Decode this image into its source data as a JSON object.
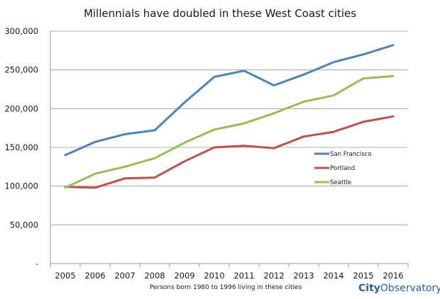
{
  "chart_data": {
    "type": "line",
    "title": "Millennials have doubled in these West Coast cities",
    "xlabel": "Persons born 1980 to 1996 living in these cities",
    "ylabel": "",
    "categories": [
      "2005",
      "2006",
      "2007",
      "2008",
      "2009",
      "2010",
      "2011",
      "2012",
      "2013",
      "2014",
      "2015",
      "2016"
    ],
    "ylim": [
      0,
      300000
    ],
    "yticks": [
      0,
      50000,
      100000,
      150000,
      200000,
      250000,
      300000
    ],
    "ytick_labels": [
      "-",
      "50,000",
      "100,000",
      "150,000",
      "200,000",
      "250,000",
      "300,000"
    ],
    "grid": true,
    "legend_position": "right",
    "series": [
      {
        "name": "San Francisco",
        "color": "#4f81bd",
        "values": [
          140000,
          157000,
          167000,
          172000,
          208000,
          241000,
          249000,
          230000,
          244000,
          260000,
          270000,
          282000
        ]
      },
      {
        "name": "Portland",
        "color": "#c0504d",
        "values": [
          99000,
          98000,
          110000,
          111000,
          132000,
          150000,
          152000,
          149000,
          164000,
          170000,
          183000,
          190000
        ]
      },
      {
        "name": "Seattle",
        "color": "#9bbb59",
        "values": [
          98000,
          116000,
          125000,
          136000,
          156000,
          173000,
          181000,
          194000,
          209000,
          217000,
          239000,
          242000
        ]
      }
    ]
  },
  "brand": {
    "city": "City",
    "observatory": "Observatory"
  }
}
